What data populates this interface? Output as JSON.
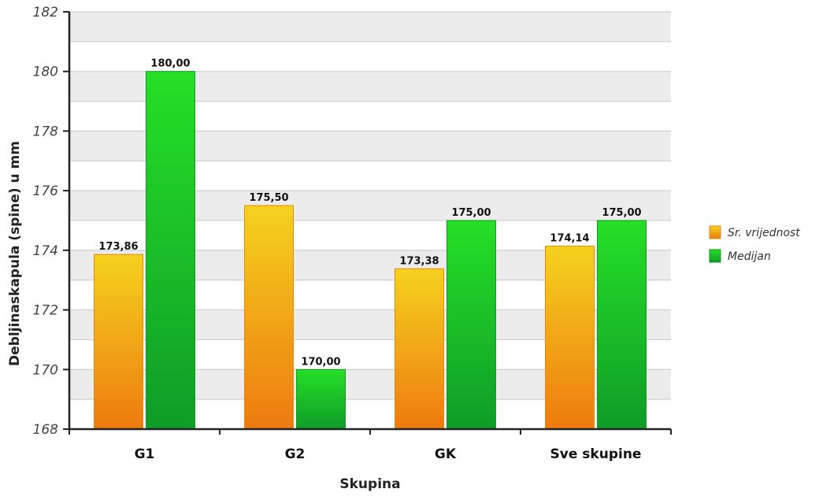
{
  "chart_data": {
    "type": "bar",
    "title": "",
    "xlabel": "Skupina",
    "ylabel": "Debljinaskapula (spine) u mm",
    "categories": [
      "G1",
      "G2",
      "GK",
      "Sve skupine"
    ],
    "series": [
      {
        "name": "Sr. vrijednost",
        "values": [
          173.86,
          175.5,
          173.38,
          174.14
        ],
        "labels": [
          "173,86",
          "175,50",
          "173,38",
          "174,14"
        ],
        "color_top": "#f5d21e",
        "color_bottom": "#ee7a10"
      },
      {
        "name": "Medijan",
        "values": [
          180.0,
          170.0,
          175.0,
          175.0
        ],
        "labels": [
          "180,00",
          "170,00",
          "175,00",
          "175,00"
        ],
        "color_top": "#26df26",
        "color_bottom": "#0f9c29"
      }
    ],
    "ylim": [
      168,
      182
    ],
    "yticks": [
      168,
      170,
      172,
      174,
      176,
      178,
      180,
      182
    ],
    "grid": true,
    "legend_position": "right"
  }
}
